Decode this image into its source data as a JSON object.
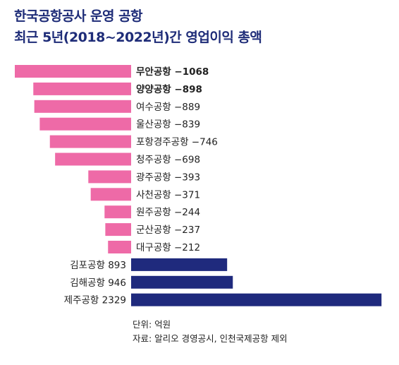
{
  "header": {
    "title_line1": "한국공항공사 운영 공항",
    "title_line2": "최근 5년(2018~2022년)간 영업이익 총액"
  },
  "colors": {
    "negative": "#ee6aa7",
    "positive": "#1f2a7d",
    "title": "#1e2c78"
  },
  "chart_data": {
    "type": "bar",
    "orientation": "horizontal",
    "categories": [
      "무안공항",
      "양양공항",
      "여수공항",
      "울산공항",
      "포항경주공항",
      "청주공항",
      "광주공항",
      "사천공항",
      "원주공항",
      "군산공항",
      "대구공항",
      "김포공항",
      "김해공항",
      "제주공항"
    ],
    "labels": [
      "무안공항 −1068",
      "양양공항 −898",
      "여수공항 −889",
      "울산공항 −839",
      "포항경주공항 −746",
      "청주공항 −698",
      "광주공항 −393",
      "사천공항 −371",
      "원주공항 −244",
      "군산공항 −237",
      "대구공항 −212",
      "김포공항 893",
      "김해공항 946",
      "제주공항 2329"
    ],
    "values": [
      -1068,
      -898,
      -889,
      -839,
      -746,
      -698,
      -393,
      -371,
      -244,
      -237,
      -212,
      893,
      946,
      2329
    ],
    "bold": [
      true,
      true,
      false,
      false,
      false,
      false,
      false,
      false,
      false,
      false,
      false,
      false,
      false,
      false
    ],
    "unit": "억원"
  },
  "notes": {
    "unit": "단위: 억원",
    "source": "자료: 알리오 경영공시, 인천국제공항 제외"
  }
}
